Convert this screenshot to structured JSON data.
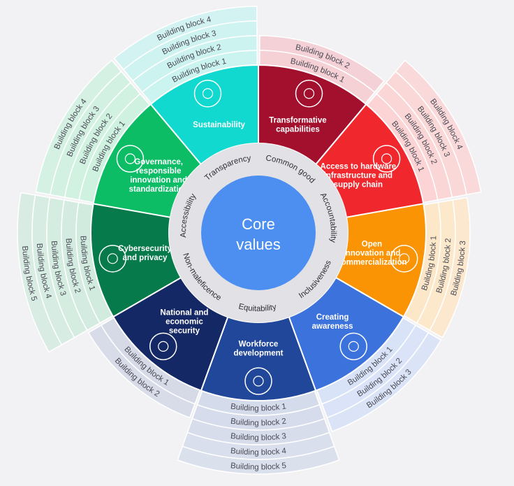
{
  "core": {
    "line1": "Core",
    "line2": "values",
    "color": "#4d8ff0"
  },
  "values_ring_color": "#e2e2e6",
  "values": [
    "Transparency",
    "Common good",
    "Accountability",
    "Inclusiveness",
    "Equitability",
    "Non-maleficence",
    "Accessibility"
  ],
  "segments": [
    {
      "id": "sustainability",
      "lines": [
        "Sustainability"
      ],
      "color": "#12d9cf",
      "ring_color": "#c8f3ef",
      "icon": "sustainability-icon",
      "blocks": [
        "Building block 1",
        "Building block 2",
        "Building block 3",
        "Building block 4"
      ]
    },
    {
      "id": "transformative-capabilities",
      "lines": [
        "Transformative",
        "capabilities"
      ],
      "color": "#a3102e",
      "ring_color": "#f4cdd2",
      "icon": "computer-network-icon",
      "blocks": [
        "Building block 1",
        "Building block 2"
      ]
    },
    {
      "id": "hardware-access",
      "lines": [
        "Access to hardware",
        "infrastructure and",
        "supply chain"
      ],
      "color": "#f0282d",
      "ring_color": "#fcd2d3",
      "icon": "chip-icon",
      "blocks": [
        "Building block 1",
        "Building block 2",
        "Building block 3",
        "Building block 4"
      ]
    },
    {
      "id": "open-innovation",
      "lines": [
        "Open",
        "innovation and",
        "commercialization"
      ],
      "color": "#fb9404",
      "ring_color": "#fde6c6",
      "icon": "lightbulb-icon",
      "blocks": [
        "Building block 1",
        "Building block 2",
        "Building block 3"
      ]
    },
    {
      "id": "creating-awareness",
      "lines": [
        "Creating",
        "awareness"
      ],
      "color": "#3c72db",
      "ring_color": "#d6e1f7",
      "icon": "audience-icon",
      "blocks": [
        "Building block 1",
        "Building block 2",
        "Building block 3"
      ]
    },
    {
      "id": "workforce-development",
      "lines": [
        "Workforce",
        "development"
      ],
      "color": "#21479a",
      "ring_color": "#d2d9ea",
      "icon": "training-icon",
      "blocks": [
        "Building block 1",
        "Building block 2",
        "Building block 3",
        "Building block 4",
        "Building block 5"
      ]
    },
    {
      "id": "national-security",
      "lines": [
        "National and",
        "economic",
        "security"
      ],
      "color": "#152866",
      "ring_color": "#d4d8e6",
      "icon": "globe-icon",
      "blocks": [
        "Building block 1",
        "Building block 2"
      ]
    },
    {
      "id": "cybersecurity",
      "lines": [
        "Cybersecurity",
        "and privacy"
      ],
      "color": "#067a4a",
      "ring_color": "#cfeadd",
      "icon": "lock-icon",
      "blocks": [
        "Building block 1",
        "Building block 2",
        "Building block 3",
        "Building block 4",
        "Building block 5"
      ]
    },
    {
      "id": "governance",
      "lines": [
        "Governance,",
        "responsible",
        "innovation and",
        "standardization"
      ],
      "color": "#0cbd66",
      "ring_color": "#ccf1de",
      "icon": "capitol-icon",
      "blocks": [
        "Building block 1",
        "Building block 2",
        "Building block 3",
        "Building block 4"
      ]
    }
  ]
}
